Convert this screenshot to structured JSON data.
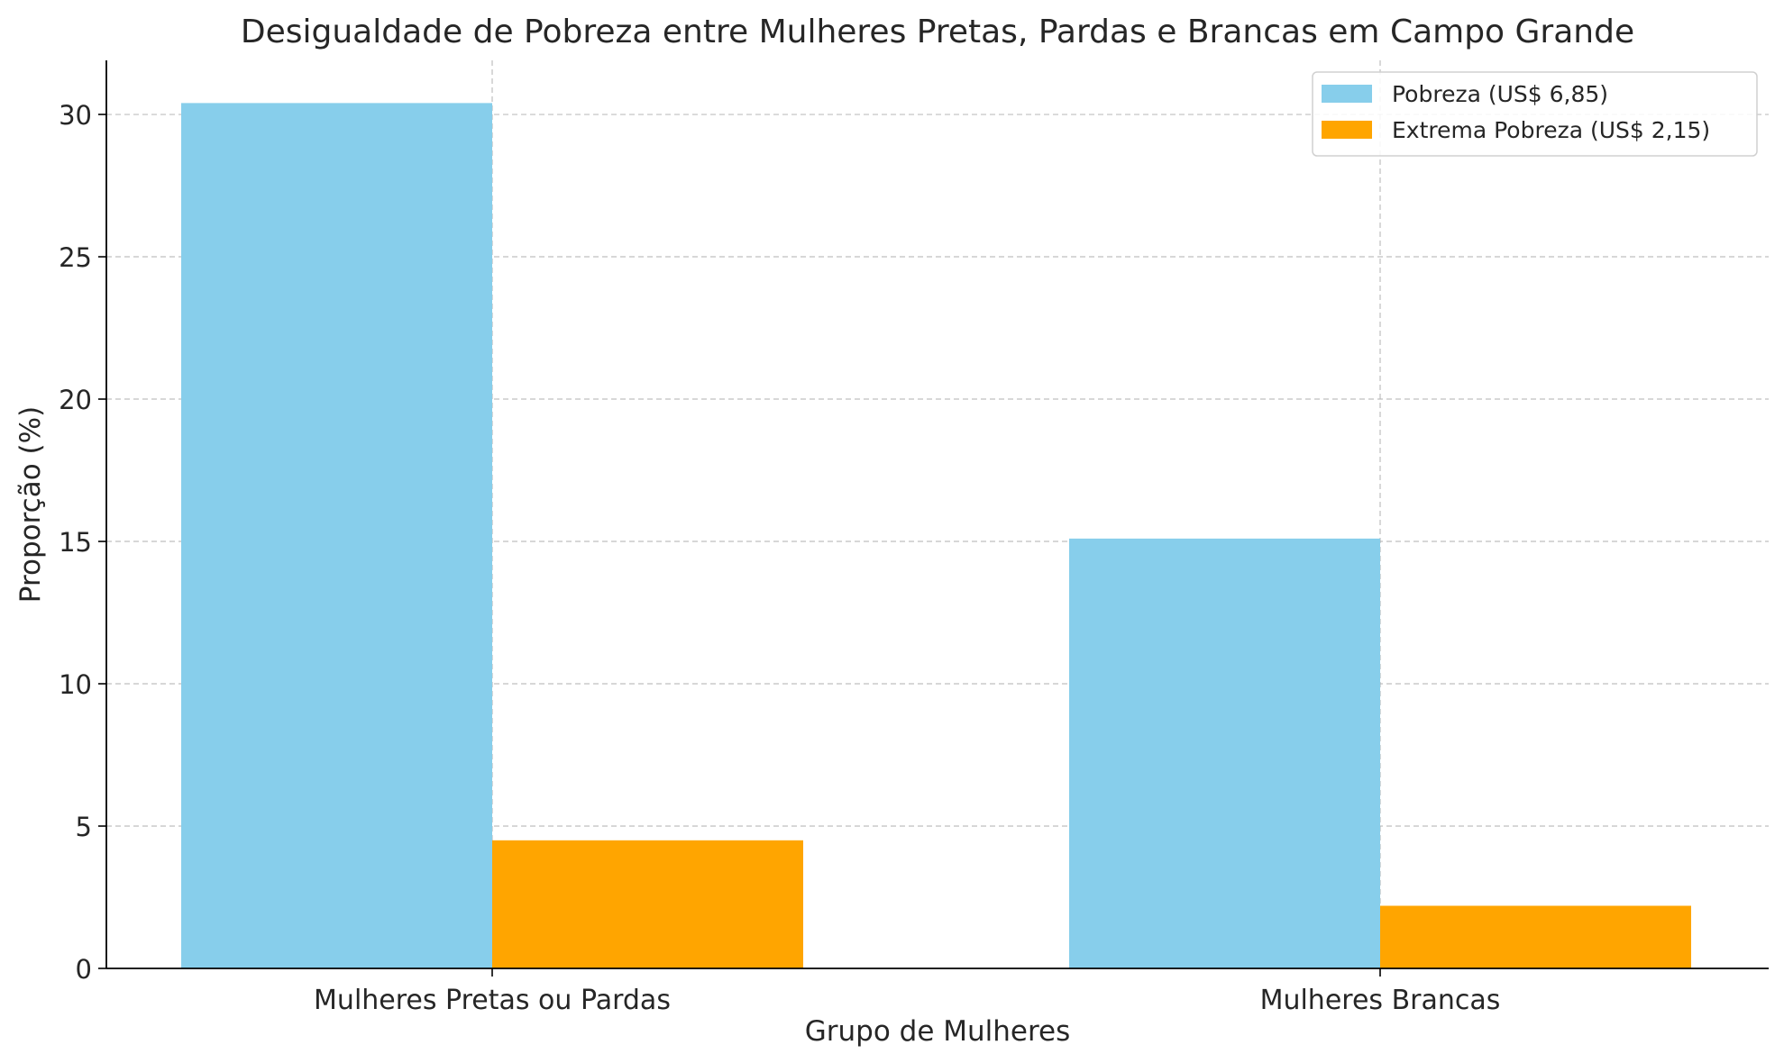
{
  "chart_data": {
    "type": "bar",
    "title": "Desigualdade de Pobreza entre Mulheres Pretas, Pardas e Brancas em Campo Grande",
    "xlabel": "Grupo de Mulheres",
    "ylabel": "Proporção (%)",
    "categories": [
      "Mulheres Pretas ou Pardas",
      "Mulheres Brancas"
    ],
    "series": [
      {
        "name": "Pobreza (US$ 6,85)",
        "values": [
          30.4,
          15.1
        ],
        "color": "#87ceeb"
      },
      {
        "name": "Extrema Pobreza (US$ 2,15)",
        "values": [
          4.5,
          2.2
        ],
        "color": "#ffa500"
      }
    ],
    "ylim": [
      0,
      31.9
    ],
    "yticks": [
      0,
      5,
      10,
      15,
      20,
      25,
      30
    ],
    "grid": true,
    "legend": "top-right"
  }
}
